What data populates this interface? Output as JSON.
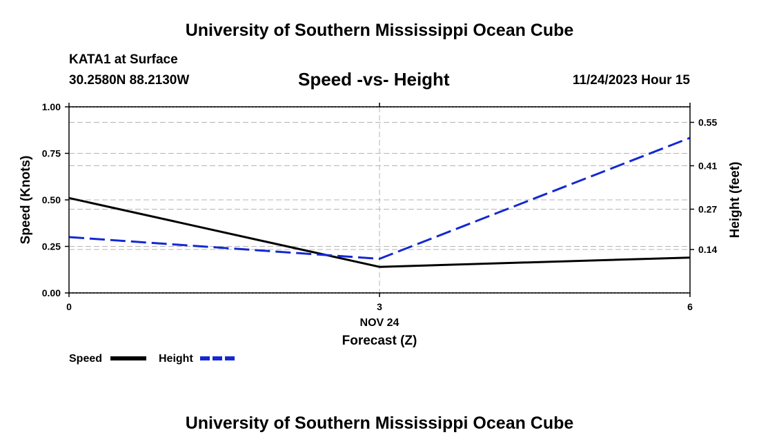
{
  "header": {
    "title_top": "University of Southern Mississippi Ocean Cube",
    "title_bottom": "University of Southern Mississippi Ocean Cube",
    "station": "KATA1 at Surface",
    "coords": "30.2580N  88.2130W",
    "datetime": "11/24/2023 Hour 15"
  },
  "chart_data": {
    "type": "line",
    "title": "Speed -vs- Height",
    "x": [
      0,
      3,
      6
    ],
    "x_ticks": [
      "0",
      "3",
      "6"
    ],
    "x_date_label": "NOV 24",
    "xlabel": "Forecast (Z)",
    "xlim": [
      0,
      6
    ],
    "ylabel_left": "Speed (Knots)",
    "ylim_left": [
      0,
      1.0
    ],
    "y_ticks_left": [
      "0.00",
      "0.25",
      "0.50",
      "0.75",
      "1.00"
    ],
    "ylabel_right": "Height (feet)",
    "ylim_right": [
      0,
      0.6
    ],
    "y_ticks_right_values": [
      0.14,
      0.27,
      0.41,
      0.55
    ],
    "y_ticks_right": [
      "0.14",
      "0.27",
      "0.41",
      "0.55"
    ],
    "grid": true,
    "series": [
      {
        "name": "Speed",
        "axis": "left",
        "color": "#000000",
        "style": "solid",
        "values": [
          0.51,
          0.14,
          0.19
        ]
      },
      {
        "name": "Height",
        "axis": "right",
        "color": "#1428d2",
        "style": "dashed",
        "values": [
          0.18,
          0.11,
          0.5
        ]
      }
    ]
  }
}
